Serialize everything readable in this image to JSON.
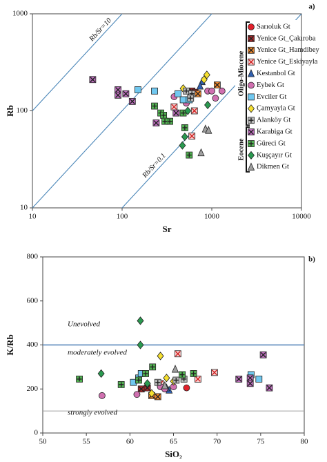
{
  "chart_data": [
    {
      "type": "scatter",
      "panel_label": "a)",
      "xlabel": "Sr",
      "ylabel": "Rb",
      "xlog": true,
      "ylog": true,
      "xlim": [
        10,
        10000
      ],
      "ylim": [
        10,
        1000
      ],
      "xticks": [
        10,
        100,
        1000,
        10000
      ],
      "yticks": [
        10,
        100,
        1000
      ],
      "ratio_lines": [
        {
          "ratio": 10,
          "label": "Rb/Sr=10"
        },
        {
          "ratio": 1
        },
        {
          "ratio": 0.1,
          "label": "Rb/Sr=0.1"
        }
      ],
      "ratio_line_color": "#4a86b8",
      "legend_groups": [
        {
          "label": "Oligo-Miocene",
          "series": [
            0,
            1,
            2,
            3,
            4,
            5,
            6,
            7,
            8
          ]
        },
        {
          "label": "Eocene",
          "series": [
            9,
            10,
            11,
            12
          ]
        }
      ],
      "series": [
        {
          "name": "Sarıoluk Gt",
          "color": "#e0202a",
          "marker": "circle",
          "x": [
            620
          ],
          "y": [
            158
          ]
        },
        {
          "name": "Yenice Gt_Çakıroba",
          "color": "#a8282a",
          "marker": "square-x",
          "x": [
            600,
            650
          ],
          "y": [
            160,
            155
          ]
        },
        {
          "name": "Yenice Gt_Hamdibey",
          "color": "#f08a30",
          "marker": "square-x",
          "x": [
            1150,
            700
          ],
          "y": [
            185,
            150
          ]
        },
        {
          "name": "Yenice Gt_Eskiyayla",
          "color": "#f8d0d0",
          "marker": "square-x-red",
          "x": [
            380,
            640,
            600
          ],
          "y": [
            110,
            100,
            55
          ]
        },
        {
          "name": "Kestanbol Gt",
          "color": "#3060b0",
          "marker": "triangle",
          "x": [
            780,
            740
          ],
          "y": [
            200,
            180
          ]
        },
        {
          "name": "Eybek Gt",
          "color": "#d070b0",
          "marker": "circle",
          "x": [
            900,
            1000,
            1300,
            1100,
            520,
            380
          ],
          "y": [
            160,
            160,
            160,
            135,
            120,
            140
          ]
        },
        {
          "name": "Evciler Gt",
          "color": "#70c8f0",
          "marker": "square",
          "x": [
            150,
            230,
            420,
            480,
            560
          ],
          "y": [
            165,
            160,
            150,
            130,
            130
          ]
        },
        {
          "name": "Çamyayla Gt",
          "color": "#f6e030",
          "marker": "diamond",
          "x": [
            880,
            820,
            480
          ],
          "y": [
            235,
            210,
            170
          ]
        },
        {
          "name": "Alanköy Gt",
          "color": "#b8b8b8",
          "marker": "square-plus",
          "x": [
            520,
            600,
            580
          ],
          "y": [
            160,
            150,
            135
          ]
        },
        {
          "name": "Karabiga Gt",
          "color": "#c070c0",
          "marker": "square-x",
          "x": [
            47,
            90,
            110,
            130,
            90,
            240,
            400
          ],
          "y": [
            210,
            165,
            150,
            125,
            145,
            75,
            95
          ]
        },
        {
          "name": "Güreci Gt",
          "color": "#50b050",
          "marker": "square-plus",
          "x": [
            230,
            270,
            290,
            340,
            480,
            500,
            300,
            560
          ],
          "y": [
            112,
            95,
            90,
            78,
            95,
            67,
            78,
            35
          ]
        },
        {
          "name": "Kuşçayır Gt",
          "color": "#2a9a50",
          "marker": "diamond",
          "x": [
            540,
            500,
            470,
            900
          ],
          "y": [
            100,
            54,
            44,
            115
          ]
        },
        {
          "name": "Dikmen Gt",
          "color": "#a0a0a0",
          "marker": "triangle",
          "x": [
            850,
            920,
            760
          ],
          "y": [
            65,
            63,
            37
          ]
        }
      ]
    },
    {
      "type": "scatter",
      "panel_label": "b)",
      "xlabel": "SiO₂",
      "ylabel": "K/Rb",
      "xlim": [
        50,
        80
      ],
      "ylim": [
        0,
        800
      ],
      "xticks": [
        50,
        55,
        60,
        65,
        70,
        75,
        80
      ],
      "yticks": [
        0,
        200,
        400,
        600,
        800
      ],
      "reference_lines": [
        {
          "value": 400,
          "color": "#4a7fb5"
        },
        {
          "value": 100,
          "color": "#a0a0a0"
        }
      ],
      "annotations": [
        "Unevolved",
        "moderately evolved",
        "strongly evolved"
      ],
      "series": [
        {
          "color": "#e0202a",
          "marker": "circle",
          "x": [
            66.5
          ],
          "y": [
            205
          ]
        },
        {
          "color": "#a8282a",
          "marker": "square-x",
          "x": [
            61.3,
            62
          ],
          "y": [
            200,
            205
          ]
        },
        {
          "color": "#f08a30",
          "marker": "square-x",
          "x": [
            62.5,
            63.2
          ],
          "y": [
            170,
            165
          ]
        },
        {
          "color": "#f8d0d0",
          "marker": "square-x-red",
          "x": [
            65.5,
            69.7,
            67.8,
            63.5
          ],
          "y": [
            360,
            275,
            245,
            225
          ]
        },
        {
          "color": "#3060b0",
          "marker": "triangle",
          "x": [
            64.5,
            64.2
          ],
          "y": [
            195,
            205
          ]
        },
        {
          "color": "#d070b0",
          "marker": "circle",
          "x": [
            56.8,
            60.8,
            63.5,
            64,
            65
          ],
          "y": [
            170,
            175,
            210,
            200,
            210
          ]
        },
        {
          "color": "#70c8f0",
          "marker": "square",
          "x": [
            60.4,
            61,
            61.3,
            73.9,
            74.8
          ],
          "y": [
            230,
            250,
            270,
            265,
            245
          ]
        },
        {
          "color": "#f6e030",
          "marker": "diamond",
          "x": [
            63.5,
            62.5,
            64.2,
            65
          ],
          "y": [
            350,
            180,
            250,
            235
          ]
        },
        {
          "color": "#b8b8b8",
          "marker": "square-plus",
          "x": [
            63.2,
            65.3,
            66.2
          ],
          "y": [
            230,
            240,
            245
          ]
        },
        {
          "color": "#c070c0",
          "marker": "square-x",
          "x": [
            72.5,
            73.8,
            73.8,
            75.3,
            76
          ],
          "y": [
            245,
            250,
            225,
            355,
            205
          ]
        },
        {
          "color": "#50b050",
          "marker": "square-plus",
          "x": [
            54.2,
            59,
            61,
            61.8,
            62.6,
            67.3,
            66
          ],
          "y": [
            245,
            220,
            240,
            270,
            300,
            270,
            265
          ]
        },
        {
          "color": "#2a9a50",
          "marker": "diamond",
          "x": [
            56.7,
            61.2,
            61.2,
            62
          ],
          "y": [
            270,
            510,
            400,
            225
          ]
        },
        {
          "color": "#a0a0a0",
          "marker": "triangle",
          "x": [
            65.2,
            64
          ],
          "y": [
            290,
            215
          ]
        }
      ]
    }
  ]
}
